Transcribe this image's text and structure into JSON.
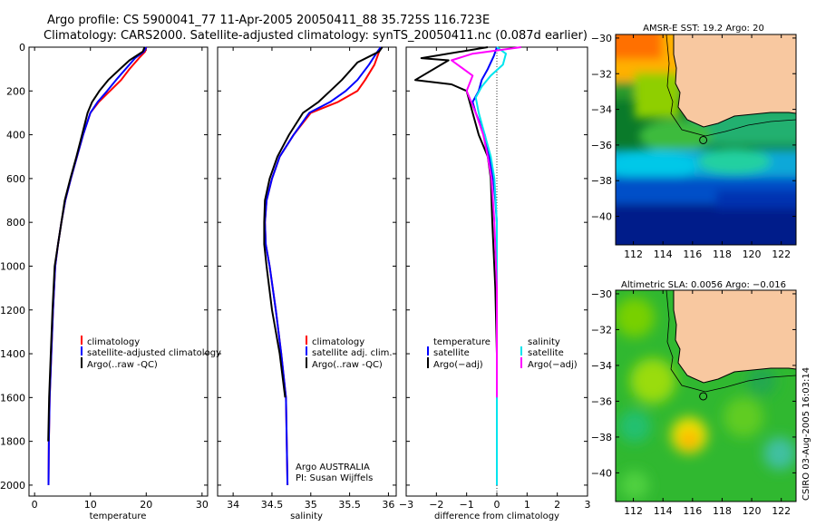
{
  "header": {
    "line1": "Argo profile: CS 5900041_77 11-Apr-2005 20050411_88 35.725S 116.723E",
    "line2": "Climatology: CARS2000. Satellite-adjusted climatology: synTS_20050411.nc (0.087d earlier)"
  },
  "colors": {
    "climatology": "#ff0000",
    "satellite": "#0000ff",
    "argo": "#000000",
    "sal_satellite": "#00e5ee",
    "sal_argo": "#ff00ff",
    "land": "#f8c8a0"
  },
  "chart_data": [
    {
      "id": "temperature",
      "type": "line",
      "xlabel": "temperature",
      "ylabel": "",
      "xlim": [
        -1,
        31
      ],
      "ylim": [
        2050,
        0
      ],
      "xticks": [
        0,
        10,
        20,
        30
      ],
      "xtick_labels": [
        "0",
        "10",
        "20",
        "30"
      ],
      "yticks": [
        0,
        200,
        400,
        600,
        800,
        1000,
        1200,
        1400,
        1600,
        1800,
        2000
      ],
      "ytick_labels": [
        "0",
        "200",
        "400",
        "600",
        "800",
        "1000",
        "1200",
        "1400",
        "1600",
        "1800",
        "2000"
      ],
      "legend": [
        "climatology",
        "satellite-adjusted climatology",
        "Argo(..raw -QC)"
      ],
      "series": [
        {
          "name": "climatology",
          "color": "#ff0000",
          "x": [
            20.0,
            19.8,
            18.7,
            17.0,
            15.5,
            13.5,
            11.5,
            10.0,
            8.7,
            7.6,
            6.5,
            5.5,
            4.8,
            4.2,
            3.7,
            3.3,
            3.0,
            2.7,
            2.55,
            2.5
          ],
          "y": [
            0,
            20,
            50,
            100,
            150,
            200,
            250,
            300,
            400,
            500,
            600,
            700,
            800,
            900,
            1000,
            1200,
            1400,
            1600,
            1800,
            2000
          ]
        },
        {
          "name": "satellite-adjusted climatology",
          "color": "#0000ff",
          "x": [
            20.0,
            19.6,
            18.0,
            16.3,
            14.6,
            13.0,
            11.3,
            10.0,
            8.7,
            7.6,
            6.5,
            5.5,
            4.8,
            4.2,
            3.7,
            3.3,
            3.0,
            2.7,
            2.55,
            2.5
          ],
          "y": [
            0,
            20,
            50,
            100,
            150,
            200,
            250,
            300,
            400,
            500,
            600,
            700,
            800,
            900,
            1000,
            1200,
            1400,
            1600,
            1800,
            2000
          ]
        },
        {
          "name": "Argo(..raw -QC)",
          "color": "#000000",
          "x": [
            19.7,
            19.4,
            17.0,
            15.3,
            13.2,
            11.6,
            10.3,
            9.5,
            8.5,
            7.5,
            6.4,
            5.4,
            4.8,
            4.2,
            3.6,
            3.2,
            2.9,
            2.6,
            2.45
          ],
          "y": [
            0,
            20,
            60,
            100,
            150,
            200,
            250,
            300,
            400,
            500,
            600,
            700,
            800,
            900,
            1000,
            1200,
            1400,
            1600,
            1800
          ]
        }
      ]
    },
    {
      "id": "salinity",
      "type": "line",
      "xlabel": "salinity",
      "ylabel": "",
      "xlim": [
        33.8,
        36.1
      ],
      "ylim": [
        2050,
        0
      ],
      "xticks": [
        34,
        34.5,
        35,
        35.5,
        36
      ],
      "xtick_labels": [
        "34",
        "34.5",
        "35",
        "35.5",
        "36"
      ],
      "legend": [
        "climatology",
        "satellite adj. clim.",
        "Argo(..raw -QC)"
      ],
      "annotations": [
        "Argo AUSTRALIA",
        "PI: Susan Wijffels"
      ],
      "series": [
        {
          "name": "climatology",
          "color": "#ff0000",
          "x": [
            35.9,
            35.88,
            35.82,
            35.7,
            35.6,
            35.35,
            35.0,
            34.78,
            34.6,
            34.5,
            34.43,
            34.41,
            34.42,
            34.47,
            34.55,
            34.62,
            34.68,
            34.7
          ],
          "y": [
            0,
            20,
            80,
            150,
            200,
            250,
            300,
            400,
            500,
            600,
            700,
            800,
            900,
            1000,
            1200,
            1400,
            1600,
            2000
          ]
        },
        {
          "name": "satellite adj. clim.",
          "color": "#0000ff",
          "x": [
            35.9,
            35.86,
            35.75,
            35.6,
            35.45,
            35.25,
            34.98,
            34.78,
            34.6,
            34.5,
            34.43,
            34.41,
            34.42,
            34.47,
            34.55,
            34.62,
            34.68,
            34.7
          ],
          "y": [
            0,
            20,
            80,
            150,
            200,
            250,
            300,
            400,
            500,
            600,
            700,
            800,
            900,
            1000,
            1200,
            1400,
            1600,
            2000
          ]
        },
        {
          "name": "Argo(..raw -QC)",
          "color": "#000000",
          "x": [
            35.92,
            35.88,
            35.6,
            35.4,
            35.25,
            35.1,
            34.9,
            34.72,
            34.57,
            34.47,
            34.41,
            34.4,
            34.4,
            34.43,
            34.5,
            34.6,
            34.67
          ],
          "y": [
            0,
            20,
            70,
            150,
            200,
            250,
            300,
            400,
            500,
            600,
            700,
            800,
            900,
            1000,
            1200,
            1400,
            1600
          ]
        }
      ]
    },
    {
      "id": "difference",
      "type": "line",
      "xlabel": "difference from climatology",
      "ylabel": "",
      "xlim": [
        -3,
        3
      ],
      "ylim": [
        2050,
        0
      ],
      "xticks": [
        -3,
        -2,
        -1,
        0,
        1,
        2,
        3
      ],
      "xtick_labels": [
        "−3",
        "−2",
        "−1",
        "0",
        "1",
        "2",
        "3"
      ],
      "legend_left": [
        "temperature",
        "satellite",
        "Argo(−adj)"
      ],
      "legend_right": [
        "salinity",
        "satellite",
        "Argo(−adj)"
      ],
      "series": [
        {
          "name": "temperature satellite",
          "color": "#0000ff",
          "x": [
            0.0,
            -0.1,
            -0.3,
            -0.5,
            -0.6,
            -0.8,
            -0.7,
            -0.4,
            -0.25,
            -0.12,
            -0.05,
            0.0,
            0.0,
            0.0,
            0.0
          ],
          "y": [
            0,
            40,
            100,
            150,
            200,
            250,
            300,
            400,
            500,
            600,
            700,
            800,
            1000,
            1500,
            2000
          ]
        },
        {
          "name": "temperature Argo(-adj)",
          "color": "#000000",
          "x": [
            -0.3,
            -2.5,
            -1.6,
            -2.7,
            -1.5,
            -1.0,
            -0.9,
            -0.8,
            -0.6,
            -0.3,
            -0.2,
            -0.15,
            -0.05,
            0.0,
            0.0
          ],
          "y": [
            0,
            50,
            60,
            150,
            170,
            200,
            250,
            300,
            400,
            500,
            600,
            800,
            1100,
            1400,
            1800
          ]
        },
        {
          "name": "salinity satellite",
          "color": "#00e5ee",
          "x": [
            0.0,
            0.3,
            0.2,
            -0.2,
            -0.5,
            -0.7,
            -0.6,
            -0.4,
            -0.2,
            -0.08,
            0.0,
            0.0,
            0.0
          ],
          "y": [
            0,
            30,
            80,
            130,
            180,
            230,
            300,
            400,
            500,
            600,
            800,
            1200,
            2000
          ]
        },
        {
          "name": "salinity Argo(-adj)",
          "color": "#ff00ff",
          "x": [
            0.8,
            -0.8,
            -1.5,
            -0.8,
            -1.0,
            -0.7,
            -0.45,
            -0.3,
            -0.18,
            -0.08,
            0.0,
            0.0
          ],
          "y": [
            0,
            30,
            60,
            130,
            200,
            300,
            400,
            500,
            600,
            800,
            1100,
            1600
          ]
        }
      ]
    },
    {
      "id": "sst_map",
      "type": "heatmap",
      "title": "AMSR-E SST: 19.2 Argo: 20",
      "xlim": [
        110.8,
        123
      ],
      "ylim": [
        -41.6,
        -29.8
      ],
      "xticks": [
        112,
        114,
        116,
        118,
        120,
        122
      ],
      "xtick_labels": [
        "112",
        "114",
        "116",
        "118",
        "120",
        "122"
      ],
      "yticks": [
        -30,
        -32,
        -34,
        -36,
        -38,
        -40
      ],
      "ytick_labels": [
        "−30",
        "−32",
        "−34",
        "−36",
        "−38",
        "−40"
      ],
      "float_position": {
        "lon": 116.723,
        "lat": -35.725
      }
    },
    {
      "id": "sla_map",
      "type": "heatmap",
      "title": "Altimetric SLA: 0.0056 Argo: −0.016",
      "xlim": [
        110.8,
        123
      ],
      "ylim": [
        -41.6,
        -29.8
      ],
      "xticks": [
        112,
        114,
        116,
        118,
        120,
        122
      ],
      "xtick_labels": [
        "112",
        "114",
        "116",
        "118",
        "120",
        "122"
      ],
      "yticks": [
        -30,
        -32,
        -34,
        -36,
        -38,
        -40
      ],
      "ytick_labels": [
        "−30",
        "−32",
        "−34",
        "−36",
        "−38",
        "−40"
      ],
      "float_position": {
        "lon": 116.723,
        "lat": -35.725
      }
    }
  ],
  "footer": {
    "stamp": "CSIRO 03-Aug-2005 16:03:14"
  }
}
